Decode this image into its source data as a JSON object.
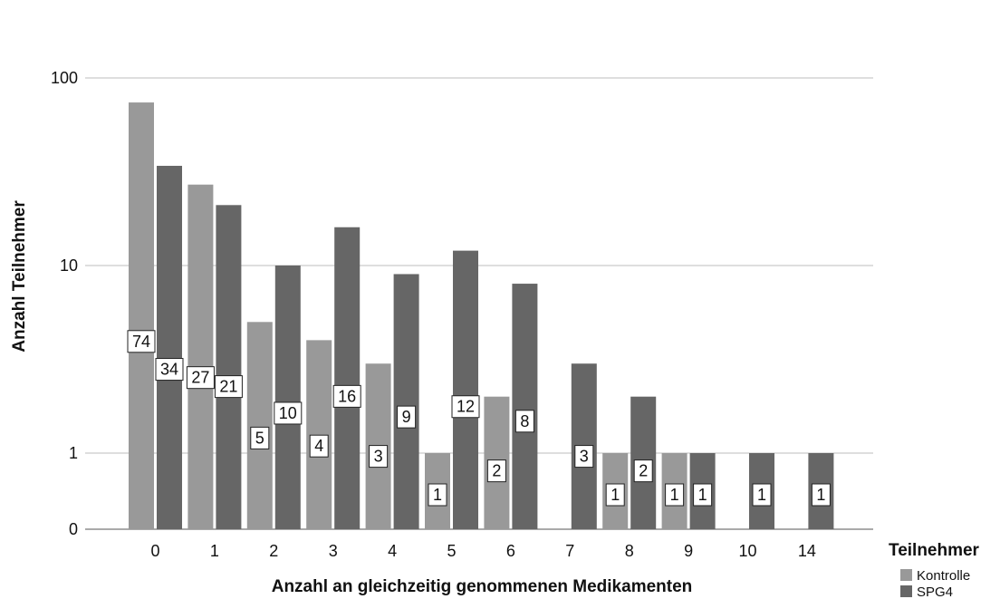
{
  "chart_data": {
    "type": "bar",
    "xlabel": "Anzahl an gleichzeitig genommenen Medikamenten",
    "ylabel": "Anzahl Teilnehmer",
    "y_scale": "log",
    "y_ticks": [
      "100",
      "10",
      "1",
      "0"
    ],
    "categories": [
      "0",
      "1",
      "2",
      "3",
      "4",
      "5",
      "6",
      "7",
      "8",
      "9",
      "10",
      "14"
    ],
    "legend": {
      "title": "Teilnehmer",
      "position": "bottom-right"
    },
    "grid": true,
    "series": [
      {
        "name": "Kontrolle",
        "color": "#999999",
        "values": [
          74,
          27,
          5,
          4,
          3,
          1,
          2,
          null,
          1,
          1,
          null,
          null
        ]
      },
      {
        "name": "SPG4",
        "color": "#666666",
        "values": [
          34,
          21,
          10,
          16,
          9,
          12,
          8,
          3,
          2,
          1,
          1,
          1
        ]
      }
    ]
  }
}
